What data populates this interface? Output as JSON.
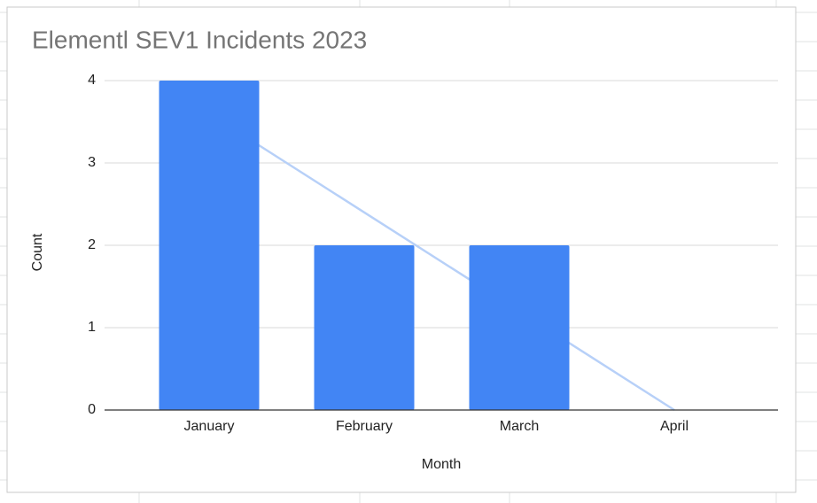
{
  "chart_data": {
    "type": "bar",
    "title": "Elementl SEV1 Incidents 2023",
    "x_label": "Month",
    "y_label": "Count",
    "categories": [
      "January",
      "February",
      "March",
      "April"
    ],
    "values": [
      4,
      2,
      2,
      0
    ],
    "color": "#4285f4",
    "trendline": {
      "color": "#b7d0f8",
      "values": [
        3.6,
        2.4,
        1.2,
        0
      ]
    },
    "ylim": [
      0,
      4
    ],
    "yticks": [
      0,
      1,
      2,
      3,
      4
    ],
    "grid": true
  }
}
